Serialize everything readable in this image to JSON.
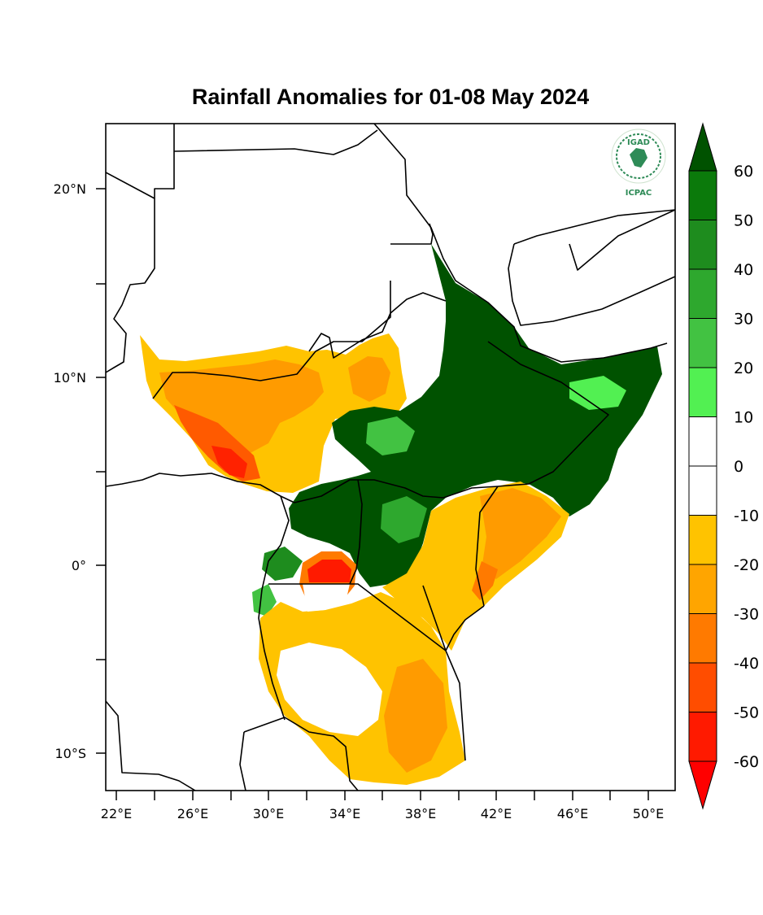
{
  "map": {
    "title": "Rainfall Anomalies for 01-08 May 2024",
    "logo": {
      "name": "IGAD",
      "subtitle": "ICPAC"
    },
    "lat_ticks": [
      "20°N",
      "10°N",
      "0°",
      "10°S"
    ],
    "lon_ticks": [
      "22°E",
      "26°E",
      "30°E",
      "34°E",
      "38°E",
      "42°E",
      "46°E",
      "50°E"
    ],
    "colorbar": {
      "levels": [
        "60",
        "50",
        "40",
        "30",
        "20",
        "10",
        "0",
        "-10",
        "-20",
        "-30",
        "-40",
        "-50",
        "-60"
      ],
      "colors": [
        "#005200",
        "#0b7a0b",
        "#1e8c1e",
        "#2ea82e",
        "#42c242",
        "#52f052",
        "#ffffff",
        "#ffffff",
        "#ffc300",
        "#ffa500",
        "#ff7a00",
        "#ff4d00",
        "#ff1a00",
        "#ff0000"
      ]
    },
    "colors": {
      "wet_strong": "#005200",
      "wet_mid": "#2ea82e",
      "wet_light": "#52f052",
      "dry_light": "#ffc300",
      "dry_mid": "#ffa500",
      "dry_strong": "#ff7a00",
      "dry_extreme": "#ff2a00"
    }
  }
}
